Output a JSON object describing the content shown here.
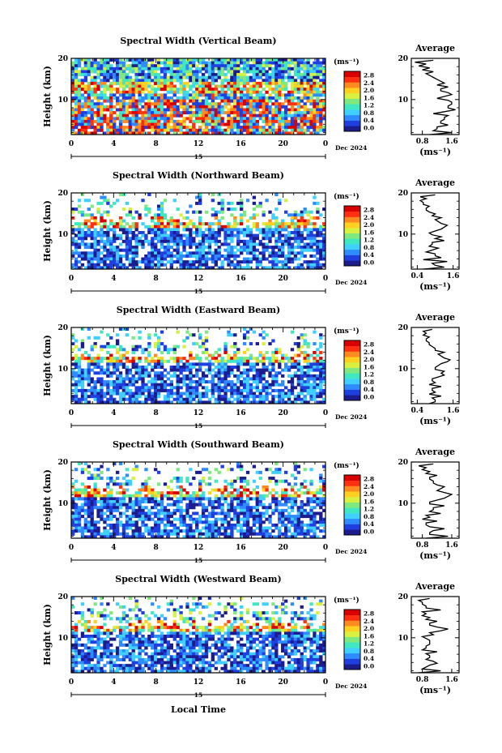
{
  "figure": {
    "xlabel": "Local Time",
    "date_label": "Dec 2024",
    "day_label": "15",
    "colorbar_unit": "(ms⁻¹)",
    "colorbar_ticks": [
      "0.0",
      "0.4",
      "0.8",
      "1.2",
      "1.6",
      "2.0",
      "2.4",
      "2.8"
    ],
    "colorbar_colors": [
      "#1c1c8c",
      "#1f3fe0",
      "#2f8cff",
      "#3fd0ff",
      "#3fe8c0",
      "#7fe87f",
      "#d8f040",
      "#ffd020",
      "#ff8a20",
      "#ff3010",
      "#d80000"
    ],
    "avg_title": "Average",
    "avg_xlabel": "(ms⁻¹)"
  },
  "chart_data": [
    {
      "type": "heatmap",
      "title": "Spectral Width (Vertical Beam)",
      "ylabel": "Height (km)",
      "xlim": [
        0,
        24
      ],
      "ylim": [
        1.5,
        20
      ],
      "xticks": [
        "0",
        "4",
        "8",
        "12",
        "16",
        "20",
        "0"
      ],
      "yticks": [
        "10",
        "20"
      ],
      "avg": {
        "title": "Average",
        "xticks": [
          "0.8",
          "1.6"
        ],
        "xlim": [
          0.5,
          1.8
        ],
        "profile": [
          [
            1.0,
            1.6
          ],
          [
            1.1,
            1.2
          ],
          [
            1.2,
            1.5
          ],
          [
            1.3,
            1.3
          ],
          [
            1.4,
            1.4
          ],
          [
            1.5,
            1.1
          ],
          [
            1.4,
            1.7
          ],
          [
            1.5,
            1.5
          ],
          [
            1.6,
            1.6
          ],
          [
            1.5,
            1.2
          ],
          [
            1.4,
            1.6
          ],
          [
            1.5,
            1.3
          ],
          [
            1.3,
            1.5
          ],
          [
            1.2,
            1.4
          ],
          [
            1.3,
            1.2
          ],
          [
            1.1,
            1.0
          ],
          [
            0.9,
            1.1
          ],
          [
            0.8,
            1.0
          ],
          [
            0.7,
            0.9
          ],
          [
            0.6,
            1.1
          ]
        ]
      }
    },
    {
      "type": "heatmap",
      "title": "Spectral Width (Northward Beam)",
      "ylabel": "Height (km)",
      "xlim": [
        0,
        24
      ],
      "ylim": [
        1.5,
        20
      ],
      "xticks": [
        "0",
        "4",
        "8",
        "12",
        "16",
        "20",
        "0"
      ],
      "yticks": [
        "10",
        "20"
      ],
      "avg": {
        "title": "Average",
        "xticks": [
          "0.4",
          "1.6"
        ],
        "xlim": [
          0.2,
          1.8
        ],
        "profile": [
          [
            0.6,
            1.3
          ],
          [
            1.0,
            0.9
          ],
          [
            1.4,
            0.6
          ],
          [
            1.2,
            1.0
          ],
          [
            1.0,
            0.7
          ],
          [
            0.9,
            1.1
          ],
          [
            0.8,
            0.9
          ],
          [
            0.9,
            1.3
          ],
          [
            1.0,
            1.2
          ],
          [
            0.9,
            0.8
          ],
          [
            1.0,
            1.2
          ],
          [
            1.3,
            1.4
          ],
          [
            1.2,
            1.1
          ],
          [
            1.0,
            1.2
          ],
          [
            0.9,
            1.0
          ],
          [
            0.8,
            0.7
          ],
          [
            0.7,
            0.8
          ],
          [
            0.6,
            0.6
          ],
          [
            0.5,
            0.7
          ],
          [
            0.5,
            1.0
          ]
        ]
      }
    },
    {
      "type": "heatmap",
      "title": "Spectral Width (Eastward Beam)",
      "ylabel": "Height (km)",
      "xlim": [
        0,
        24
      ],
      "ylim": [
        1.5,
        20
      ],
      "xticks": [
        "0",
        "4",
        "8",
        "12",
        "16",
        "20",
        "0"
      ],
      "yticks": [
        "10",
        "20"
      ],
      "avg": {
        "title": "Average",
        "xticks": [
          "0.4",
          "1.6"
        ],
        "xlim": [
          0.2,
          1.8
        ],
        "profile": [
          [
            0.8,
            1.0
          ],
          [
            1.0,
            0.9
          ],
          [
            1.2,
            0.8
          ],
          [
            1.0,
            0.9
          ],
          [
            0.9,
            1.2
          ],
          [
            0.8,
            1.0
          ],
          [
            0.9,
            0.9
          ],
          [
            1.1,
            1.3
          ],
          [
            1.2,
            1.3
          ],
          [
            1.0,
            1.0
          ],
          [
            1.1,
            1.2
          ],
          [
            1.4,
            1.5
          ],
          [
            1.3,
            1.2
          ],
          [
            1.1,
            1.3
          ],
          [
            1.0,
            1.0
          ],
          [
            0.9,
            0.8
          ],
          [
            0.8,
            0.7
          ],
          [
            0.7,
            0.8
          ],
          [
            0.6,
            0.7
          ],
          [
            0.6,
            0.9
          ]
        ]
      }
    },
    {
      "type": "heatmap",
      "title": "Spectral Width (Southward Beam)",
      "ylabel": "Height (km)",
      "xlim": [
        0,
        24
      ],
      "ylim": [
        1.5,
        20
      ],
      "xticks": [
        "0",
        "4",
        "8",
        "12",
        "16",
        "20",
        "0"
      ],
      "yticks": [
        "10",
        "20"
      ],
      "avg": {
        "title": "Average",
        "xticks": [
          "0.8",
          "1.6"
        ],
        "xlim": [
          0.5,
          1.8
        ],
        "profile": [
          [
            0.9,
            1.5
          ],
          [
            1.0,
            1.0
          ],
          [
            1.1,
            1.4
          ],
          [
            1.0,
            0.9
          ],
          [
            0.9,
            1.2
          ],
          [
            0.8,
            1.0
          ],
          [
            0.9,
            1.3
          ],
          [
            1.0,
            1.1
          ],
          [
            1.1,
            1.4
          ],
          [
            1.0,
            1.0
          ],
          [
            1.2,
            1.4
          ],
          [
            1.5,
            1.6
          ],
          [
            1.4,
            1.2
          ],
          [
            1.3,
            1.4
          ],
          [
            1.2,
            1.1
          ],
          [
            1.1,
            1.0
          ],
          [
            1.0,
            1.2
          ],
          [
            0.9,
            1.0
          ],
          [
            0.8,
            0.9
          ],
          [
            0.7,
            1.1
          ]
        ]
      }
    },
    {
      "type": "heatmap",
      "title": "Spectral Width (Westward Beam)",
      "ylabel": "Height (km)",
      "xlim": [
        0,
        24
      ],
      "ylim": [
        1.5,
        20
      ],
      "xticks": [
        "0",
        "4",
        "8",
        "12",
        "16",
        "20",
        "0"
      ],
      "yticks": [
        "10",
        "20"
      ],
      "avg": {
        "title": "Average",
        "xticks": [
          "0.8",
          "1.6"
        ],
        "xlim": [
          0.5,
          1.8
        ],
        "profile": [
          [
            0.7,
            1.3
          ],
          [
            0.8,
            0.9
          ],
          [
            1.0,
            1.2
          ],
          [
            1.1,
            0.9
          ],
          [
            1.0,
            1.0
          ],
          [
            0.9,
            1.2
          ],
          [
            0.8,
            0.9
          ],
          [
            0.9,
            1.0
          ],
          [
            1.0,
            1.0
          ],
          [
            0.9,
            0.8
          ],
          [
            1.1,
            1.0
          ],
          [
            1.3,
            1.5
          ],
          [
            1.2,
            1.0
          ],
          [
            1.0,
            1.2
          ],
          [
            0.9,
            1.0
          ],
          [
            0.8,
            0.9
          ],
          [
            0.8,
            1.3
          ],
          [
            0.9,
            0.9
          ],
          [
            0.8,
            0.8
          ],
          [
            0.7,
            1.0
          ]
        ]
      }
    }
  ]
}
